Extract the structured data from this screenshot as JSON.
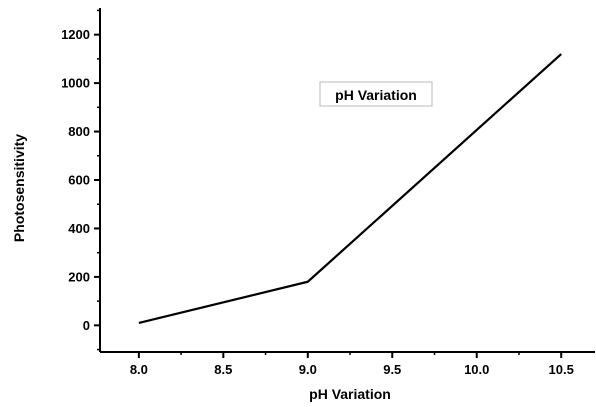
{
  "chart_data": {
    "type": "line",
    "title": "",
    "xlabel": "pH Variation",
    "ylabel": "Photosensitivity",
    "annotation": "pH Variation",
    "x": [
      8.0,
      9.0,
      10.5
    ],
    "series": [
      {
        "values": [
          10,
          180,
          1120
        ]
      }
    ],
    "xlim": [
      7.77,
      10.7
    ],
    "ylim": [
      -110,
      1310
    ],
    "xticks": [
      "8.0",
      "8.5",
      "9.0",
      "9.5",
      "10.0",
      "10.5"
    ],
    "yticks": [
      "0",
      "200",
      "400",
      "600",
      "800",
      "1000",
      "1200"
    ],
    "grid": false,
    "line_color": "#000000"
  }
}
